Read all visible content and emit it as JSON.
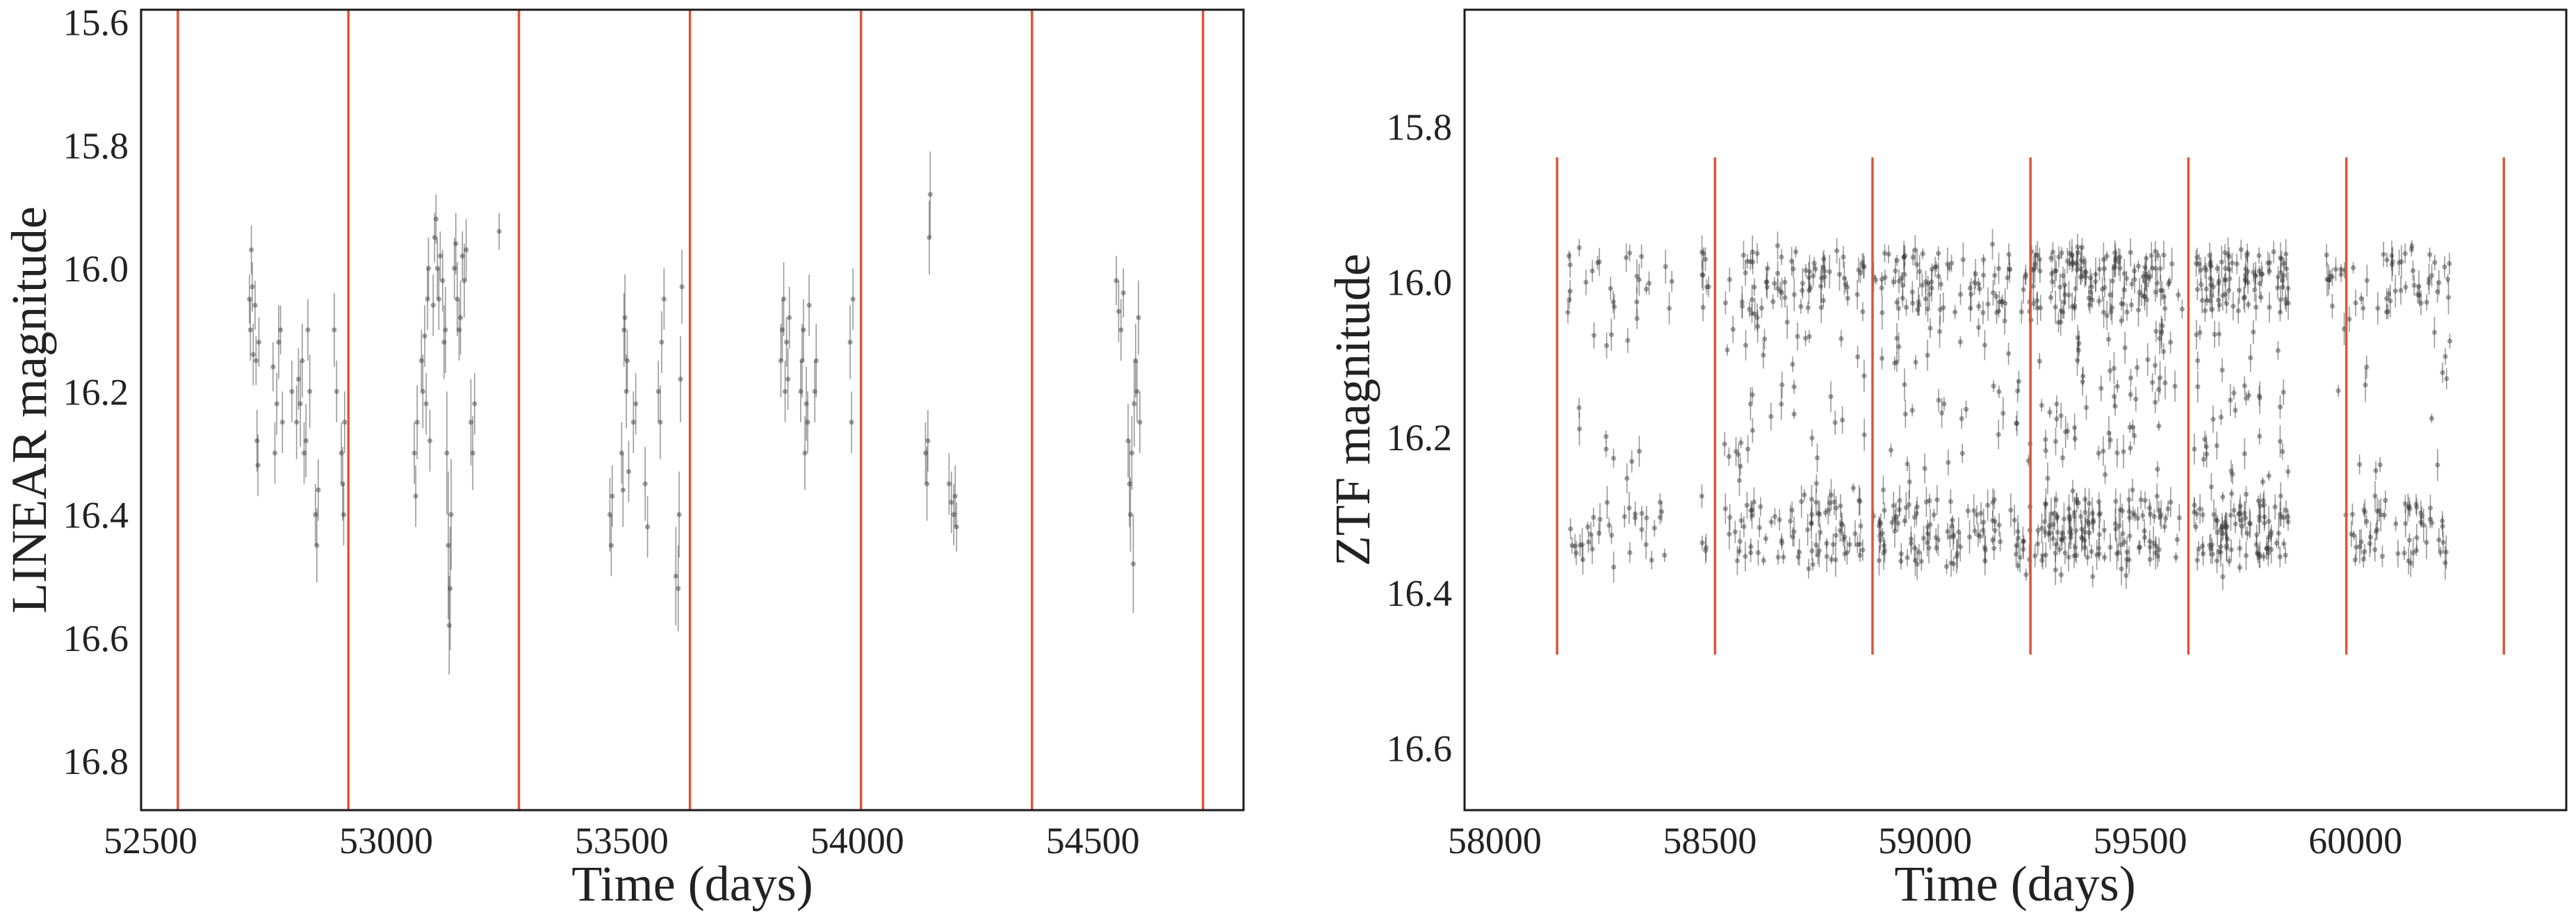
{
  "chart_data": [
    {
      "type": "scatter",
      "xlabel": "Time (days)",
      "ylabel": "LINEAR magnitude",
      "xlim": [
        52480,
        54820
      ],
      "ylim": [
        16.88,
        15.58
      ],
      "y_inverted": true,
      "grid": false,
      "xticks": [
        52500,
        53000,
        53500,
        54000,
        54500
      ],
      "xtick_labels": [
        "52500",
        "53000",
        "53500",
        "54000",
        "54500"
      ],
      "yticks": [
        15.6,
        15.8,
        16.0,
        16.2,
        16.4,
        16.6,
        16.8
      ],
      "ytick_labels": [
        "15.6",
        "15.8",
        "16.0",
        "16.2",
        "16.4",
        "16.6",
        "16.8"
      ],
      "vlines": [
        52558,
        52920,
        53282,
        53645,
        54008,
        54371,
        54734
      ],
      "vline_color": "#d9553a",
      "point_color": "#333333",
      "points": [
        [
          52710,
          16.05,
          0.04
        ],
        [
          52712,
          16.1,
          0.05
        ],
        [
          52714,
          15.97,
          0.04
        ],
        [
          52716,
          16.03,
          0.04
        ],
        [
          52718,
          16.14,
          0.05
        ],
        [
          52722,
          16.06,
          0.04
        ],
        [
          52724,
          16.15,
          0.04
        ],
        [
          52726,
          16.28,
          0.05
        ],
        [
          52728,
          16.32,
          0.05
        ],
        [
          52730,
          16.12,
          0.04
        ],
        [
          52760,
          16.16,
          0.04
        ],
        [
          52764,
          16.3,
          0.05
        ],
        [
          52768,
          16.22,
          0.05
        ],
        [
          52772,
          16.12,
          0.06
        ],
        [
          52776,
          16.1,
          0.04
        ],
        [
          52780,
          16.25,
          0.05
        ],
        [
          52800,
          16.2,
          0.05
        ],
        [
          52810,
          16.25,
          0.06
        ],
        [
          52814,
          16.18,
          0.05
        ],
        [
          52818,
          16.22,
          0.07
        ],
        [
          52822,
          16.15,
          0.06
        ],
        [
          52826,
          16.3,
          0.05
        ],
        [
          52830,
          16.28,
          0.06
        ],
        [
          52834,
          16.1,
          0.05
        ],
        [
          52838,
          16.2,
          0.06
        ],
        [
          52850,
          16.4,
          0.05
        ],
        [
          52853,
          16.45,
          0.06
        ],
        [
          52856,
          16.36,
          0.05
        ],
        [
          52890,
          16.1,
          0.06
        ],
        [
          52895,
          16.2,
          0.05
        ],
        [
          52905,
          16.3,
          0.05
        ],
        [
          52908,
          16.35,
          0.06
        ],
        [
          52910,
          16.4,
          0.05
        ],
        [
          52912,
          16.25,
          0.05
        ],
        [
          53060,
          16.3,
          0.05
        ],
        [
          53063,
          16.37,
          0.05
        ],
        [
          53066,
          16.25,
          0.06
        ],
        [
          53075,
          16.15,
          0.05
        ],
        [
          53078,
          16.2,
          0.06
        ],
        [
          53082,
          16.11,
          0.05
        ],
        [
          53085,
          16.22,
          0.05
        ],
        [
          53088,
          16.05,
          0.05
        ],
        [
          53090,
          16.0,
          0.05
        ],
        [
          53093,
          16.28,
          0.05
        ],
        [
          53100,
          16.06,
          0.05
        ],
        [
          53103,
          15.95,
          0.04
        ],
        [
          53106,
          15.92,
          0.04
        ],
        [
          53109,
          16.0,
          0.05
        ],
        [
          53112,
          16.05,
          0.05
        ],
        [
          53115,
          15.98,
          0.04
        ],
        [
          53120,
          16.02,
          0.05
        ],
        [
          53123,
          16.12,
          0.06
        ],
        [
          53126,
          16.1,
          0.07
        ],
        [
          53129,
          16.3,
          0.1
        ],
        [
          53132,
          16.45,
          0.12
        ],
        [
          53134,
          16.58,
          0.08
        ],
        [
          53136,
          16.52,
          0.1
        ],
        [
          53138,
          16.4,
          0.09
        ],
        [
          53145,
          16.0,
          0.05
        ],
        [
          53148,
          15.96,
          0.05
        ],
        [
          53151,
          16.05,
          0.06
        ],
        [
          53155,
          16.1,
          0.05
        ],
        [
          53158,
          16.08,
          0.06
        ],
        [
          53162,
          15.98,
          0.04
        ],
        [
          53166,
          16.02,
          0.06
        ],
        [
          53170,
          15.97,
          0.05
        ],
        [
          53180,
          16.25,
          0.07
        ],
        [
          53184,
          16.3,
          0.06
        ],
        [
          53188,
          16.22,
          0.05
        ],
        [
          53240,
          15.94,
          0.03
        ],
        [
          53475,
          16.4,
          0.06
        ],
        [
          53478,
          16.45,
          0.05
        ],
        [
          53480,
          16.37,
          0.05
        ],
        [
          53500,
          16.3,
          0.05
        ],
        [
          53503,
          16.36,
          0.06
        ],
        [
          53505,
          16.1,
          0.06
        ],
        [
          53507,
          16.08,
          0.07
        ],
        [
          53510,
          16.2,
          0.06
        ],
        [
          53512,
          16.15,
          0.05
        ],
        [
          53515,
          16.33,
          0.05
        ],
        [
          53525,
          16.25,
          0.05
        ],
        [
          53530,
          16.22,
          0.05
        ],
        [
          53550,
          16.35,
          0.06
        ],
        [
          53555,
          16.42,
          0.05
        ],
        [
          53578,
          16.2,
          0.05
        ],
        [
          53582,
          16.25,
          0.06
        ],
        [
          53585,
          16.12,
          0.05
        ],
        [
          53590,
          16.05,
          0.05
        ],
        [
          53615,
          16.5,
          0.08
        ],
        [
          53620,
          16.52,
          0.07
        ],
        [
          53622,
          16.4,
          0.07
        ],
        [
          53625,
          16.18,
          0.07
        ],
        [
          53628,
          16.03,
          0.06
        ],
        [
          53838,
          16.15,
          0.06
        ],
        [
          53841,
          16.1,
          0.05
        ],
        [
          53844,
          16.05,
          0.06
        ],
        [
          53847,
          16.2,
          0.05
        ],
        [
          53850,
          16.12,
          0.04
        ],
        [
          53853,
          16.18,
          0.05
        ],
        [
          53856,
          16.08,
          0.05
        ],
        [
          53880,
          16.2,
          0.05
        ],
        [
          53883,
          16.15,
          0.06
        ],
        [
          53886,
          16.1,
          0.05
        ],
        [
          53889,
          16.3,
          0.06
        ],
        [
          53892,
          16.22,
          0.06
        ],
        [
          53895,
          16.25,
          0.05
        ],
        [
          53898,
          16.06,
          0.05
        ],
        [
          53910,
          16.2,
          0.05
        ],
        [
          53913,
          16.15,
          0.06
        ],
        [
          53985,
          16.12,
          0.06
        ],
        [
          53988,
          16.25,
          0.05
        ],
        [
          53991,
          16.05,
          0.05
        ],
        [
          54145,
          16.3,
          0.05
        ],
        [
          54148,
          16.35,
          0.06
        ],
        [
          54150,
          16.28,
          0.05
        ],
        [
          54153,
          15.95,
          0.06
        ],
        [
          54155,
          15.88,
          0.07
        ],
        [
          54195,
          16.35,
          0.05
        ],
        [
          54200,
          16.38,
          0.05
        ],
        [
          54205,
          16.4,
          0.05
        ],
        [
          54208,
          16.37,
          0.05
        ],
        [
          54211,
          16.42,
          0.04
        ],
        [
          54550,
          16.02,
          0.04
        ],
        [
          54555,
          16.07,
          0.05
        ],
        [
          54560,
          16.1,
          0.05
        ],
        [
          54565,
          16.04,
          0.04
        ],
        [
          54575,
          16.28,
          0.06
        ],
        [
          54578,
          16.35,
          0.07
        ],
        [
          54580,
          16.4,
          0.06
        ],
        [
          54583,
          16.3,
          0.06
        ],
        [
          54586,
          16.48,
          0.08
        ],
        [
          54588,
          16.22,
          0.07
        ],
        [
          54591,
          16.15,
          0.06
        ],
        [
          54594,
          16.2,
          0.05
        ],
        [
          54597,
          16.08,
          0.06
        ],
        [
          54600,
          16.25,
          0.05
        ]
      ]
    },
    {
      "type": "scatter",
      "xlabel": "Time (days)",
      "ylabel": "ZTF magnitude",
      "xlim": [
        57930,
        60490
      ],
      "ylim": [
        16.68,
        15.65
      ],
      "y_inverted": true,
      "grid": false,
      "xticks": [
        58000,
        58500,
        59000,
        59500,
        60000
      ],
      "xtick_labels": [
        "58000",
        "58500",
        "59000",
        "59500",
        "60000"
      ],
      "yticks": [
        15.8,
        16.0,
        16.2,
        16.4,
        16.6
      ],
      "ytick_labels": [
        "15.8",
        "16.0",
        "16.2",
        "16.4",
        "16.6"
      ],
      "vlines": [
        58145,
        58512,
        58878,
        59245,
        59612,
        59979,
        60345
      ],
      "vline_range": [
        15.84,
        16.48
      ],
      "vline_color": "#d9553a",
      "point_color": "#333333",
      "seasons": [
        {
          "start": 58170,
          "end": 58420,
          "n": 70
        },
        {
          "start": 58480,
          "end": 58500,
          "n": 12
        },
        {
          "start": 58530,
          "end": 58860,
          "n": 190
        },
        {
          "start": 58880,
          "end": 59235,
          "n": 220
        },
        {
          "start": 59240,
          "end": 59575,
          "n": 330
        },
        {
          "start": 59580,
          "end": 59600,
          "n": 6
        },
        {
          "start": 59625,
          "end": 59845,
          "n": 220
        },
        {
          "start": 59930,
          "end": 59980,
          "n": 14
        },
        {
          "start": 59985,
          "end": 60220,
          "n": 110
        }
      ],
      "magnitude_range": [
        15.95,
        16.38
      ],
      "error_range": [
        0.006,
        0.022
      ]
    }
  ]
}
